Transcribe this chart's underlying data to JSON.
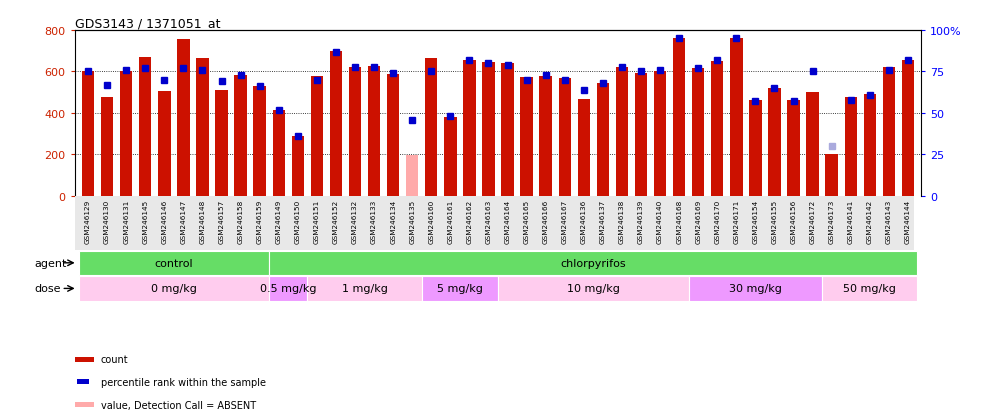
{
  "title": "GDS3143 / 1371051_at",
  "samples": [
    "GSM246129",
    "GSM246130",
    "GSM246131",
    "GSM246145",
    "GSM246146",
    "GSM246147",
    "GSM246148",
    "GSM246157",
    "GSM246158",
    "GSM246159",
    "GSM246149",
    "GSM246150",
    "GSM246151",
    "GSM246152",
    "GSM246132",
    "GSM246133",
    "GSM246134",
    "GSM246135",
    "GSM246160",
    "GSM246161",
    "GSM246162",
    "GSM246163",
    "GSM246164",
    "GSM246165",
    "GSM246166",
    "GSM246167",
    "GSM246136",
    "GSM246137",
    "GSM246138",
    "GSM246139",
    "GSM246140",
    "GSM246168",
    "GSM246169",
    "GSM246170",
    "GSM246171",
    "GSM246154",
    "GSM246155",
    "GSM246156",
    "GSM246172",
    "GSM246173",
    "GSM246141",
    "GSM246142",
    "GSM246143",
    "GSM246144"
  ],
  "bar_values": [
    600,
    475,
    600,
    670,
    505,
    755,
    665,
    510,
    585,
    530,
    415,
    290,
    580,
    700,
    620,
    625,
    590,
    195,
    665,
    380,
    655,
    645,
    640,
    575,
    580,
    570,
    465,
    545,
    620,
    595,
    600,
    760,
    615,
    650,
    760,
    460,
    520,
    460,
    500,
    200,
    475,
    490,
    620,
    655
  ],
  "bar_absent": [
    false,
    false,
    false,
    false,
    false,
    false,
    false,
    false,
    false,
    false,
    false,
    false,
    false,
    false,
    false,
    false,
    false,
    true,
    false,
    false,
    false,
    false,
    false,
    false,
    false,
    false,
    false,
    false,
    false,
    false,
    false,
    false,
    false,
    false,
    false,
    false,
    false,
    false,
    false,
    false,
    false,
    false,
    false,
    false
  ],
  "rank_values": [
    75,
    67,
    76,
    77,
    70,
    77,
    76,
    69,
    73,
    66,
    52,
    36,
    70,
    87,
    78,
    78,
    74,
    46,
    75,
    48,
    82,
    80,
    79,
    70,
    73,
    70,
    64,
    68,
    78,
    75,
    76,
    95,
    77,
    82,
    95,
    57,
    65,
    57,
    75,
    30,
    58,
    61,
    76,
    82
  ],
  "rank_absent": [
    false,
    false,
    false,
    false,
    false,
    false,
    false,
    false,
    false,
    false,
    false,
    false,
    false,
    false,
    false,
    false,
    false,
    false,
    false,
    false,
    false,
    false,
    false,
    false,
    false,
    false,
    false,
    false,
    false,
    false,
    false,
    false,
    false,
    false,
    false,
    false,
    false,
    false,
    false,
    true,
    false,
    false,
    false,
    false
  ],
  "agent_groups": [
    {
      "label": "control",
      "color": "#66dd66",
      "start": 0,
      "end": 9
    },
    {
      "label": "chlorpyrifos",
      "color": "#66dd66",
      "start": 10,
      "end": 43
    }
  ],
  "dose_groups": [
    {
      "label": "0 mg/kg",
      "color": "#ffccee",
      "start": 0,
      "end": 9
    },
    {
      "label": "0.5 mg/kg",
      "color": "#ee99ff",
      "start": 10,
      "end": 11
    },
    {
      "label": "1 mg/kg",
      "color": "#ffccee",
      "start": 12,
      "end": 17
    },
    {
      "label": "5 mg/kg",
      "color": "#ee99ff",
      "start": 18,
      "end": 21
    },
    {
      "label": "10 mg/kg",
      "color": "#ffccee",
      "start": 22,
      "end": 31
    },
    {
      "label": "30 mg/kg",
      "color": "#ee99ff",
      "start": 32,
      "end": 38
    },
    {
      "label": "50 mg/kg",
      "color": "#ffccee",
      "start": 39,
      "end": 43
    }
  ],
  "bar_color": "#cc1100",
  "bar_absent_color": "#ffaaaa",
  "rank_color": "#0000cc",
  "rank_absent_color": "#aaaadd",
  "ylim_left": [
    0,
    800
  ],
  "ylim_right": [
    0,
    100
  ],
  "yticks_left": [
    0,
    200,
    400,
    600,
    800
  ],
  "yticks_right": [
    0,
    25,
    50,
    75,
    100
  ],
  "grid_lines": [
    200,
    400,
    600
  ],
  "bar_width": 0.65
}
